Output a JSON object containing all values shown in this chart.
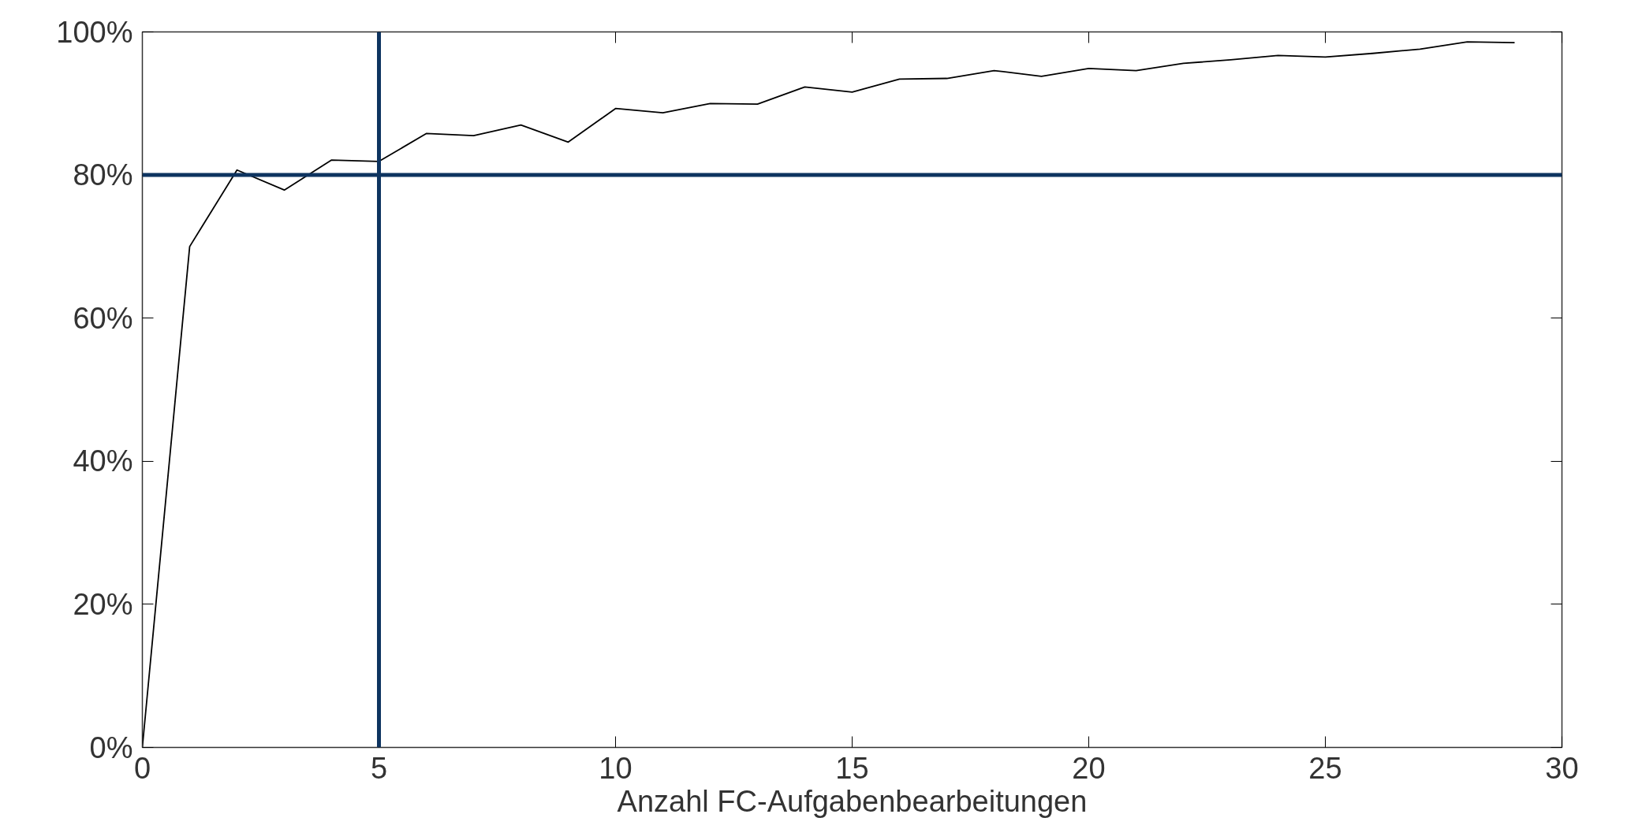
{
  "chart_data": {
    "type": "line",
    "xlabel": "Anzahl FC-Aufgabenbearbeitungen",
    "x": [
      0,
      1,
      2,
      3,
      4,
      5,
      6,
      7,
      8,
      9,
      10,
      11,
      12,
      13,
      14,
      15,
      16,
      17,
      18,
      19,
      20,
      21,
      22,
      23,
      24,
      25,
      26,
      27,
      28,
      29
    ],
    "series": [
      {
        "color": "#000000",
        "values": [
          0,
          70,
          80.7,
          77.9,
          82.1,
          81.9,
          85.8,
          85.5,
          87,
          84.6,
          89.3,
          88.7,
          90,
          89.9,
          92.3,
          91.6,
          93.4,
          93.5,
          94.6,
          93.8,
          94.9,
          94.6,
          95.6,
          96.1,
          96.7,
          96.5,
          97,
          97.6,
          98.6,
          98.5
        ]
      }
    ],
    "xlim": [
      0,
      30
    ],
    "xticks": [
      0,
      5,
      10,
      15,
      20,
      25,
      30
    ],
    "ylim": [
      0,
      100
    ],
    "yticks": [
      {
        "value": 0,
        "label": "0%"
      },
      {
        "value": 20,
        "label": "20%"
      },
      {
        "value": 40,
        "label": "40%"
      },
      {
        "value": 60,
        "label": "60%"
      },
      {
        "value": 80,
        "label": "80%"
      },
      {
        "value": 100,
        "label": "100%"
      }
    ],
    "ref_lines": [
      {
        "axis": "y",
        "value": 80,
        "color": "#0e3460"
      },
      {
        "axis": "x",
        "value": 5,
        "color": "#0e3460"
      }
    ],
    "grid": false,
    "marker": "none",
    "line_style": "solid"
  }
}
